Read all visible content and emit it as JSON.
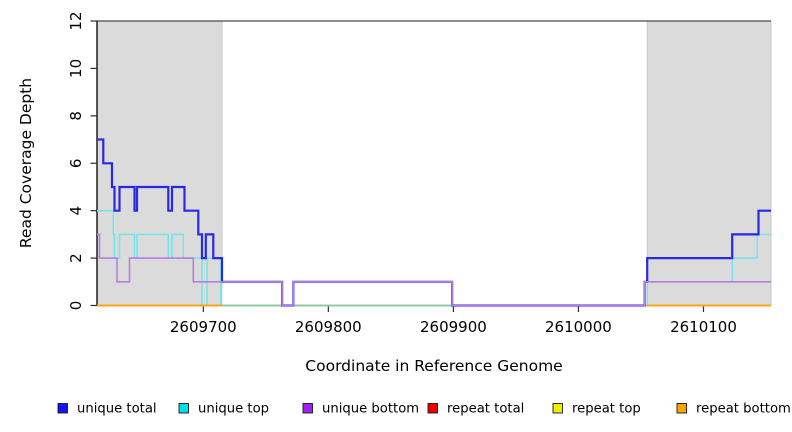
{
  "chart_data": {
    "type": "line",
    "subtype": "step-coverage",
    "title": "",
    "xlabel": "Coordinate in Reference Genome",
    "ylabel": "Read Coverage Depth",
    "xlim": [
      2609615,
      2610154
    ],
    "ylim": [
      0,
      12
    ],
    "x_ticks": [
      2609700,
      2609800,
      2609900,
      2610000,
      2610100
    ],
    "y_ticks": [
      0,
      2,
      4,
      6,
      8,
      10,
      12
    ],
    "grid": false,
    "legend_position": "bottom",
    "plot_bg": "#ffffff",
    "shaded_regions": [
      {
        "name": "shaded-region-left",
        "x0": 2609615,
        "x1": 2609715,
        "fill": "#DBDBDB",
        "border": "#BDBDBD"
      },
      {
        "name": "shaded-region-right",
        "x0": 2610055,
        "x1": 2610154,
        "fill": "#DBDBDB",
        "border": "#BDBDBD"
      }
    ],
    "series": [
      {
        "name": "repeat total",
        "color": "#E00000",
        "width": 1.4,
        "in_legend": true,
        "segments": [
          [
            [
              2609615,
              0
            ],
            [
              2609715,
              0
            ]
          ],
          [
            [
              2610055,
              0
            ],
            [
              2610154,
              0
            ]
          ]
        ]
      },
      {
        "name": "repeat top",
        "color": "#F0F000",
        "width": 1.4,
        "in_legend": true,
        "segments": [
          [
            [
              2609615,
              0
            ],
            [
              2609715,
              0
            ]
          ],
          [
            [
              2610055,
              0
            ],
            [
              2610154,
              0
            ]
          ]
        ]
      },
      {
        "name": "unique top",
        "color": "#72E6EA",
        "width": 1.5,
        "in_legend": true,
        "segments": [
          [
            [
              2609615,
              4
            ],
            [
              2609628,
              3
            ],
            [
              2609629,
              2
            ],
            [
              2609633,
              3
            ],
            [
              2609645,
              2
            ],
            [
              2609647,
              3
            ],
            [
              2609672,
              2
            ],
            [
              2609675,
              3
            ],
            [
              2609684,
              2
            ],
            [
              2609699,
              0
            ],
            [
              2609703,
              2
            ],
            [
              2609714,
              0
            ],
            [
              2610055,
              1
            ],
            [
              2610123,
              2
            ],
            [
              2610143,
              3
            ],
            [
              2610154,
              3
            ]
          ]
        ]
      },
      {
        "name": "baseline",
        "color": "#8FC98F",
        "width": 1.5,
        "in_legend": false,
        "segments": [
          [
            [
              2609715,
              0
            ],
            [
              2610154,
              0
            ]
          ]
        ]
      },
      {
        "name": "unique total",
        "color": "#2828E6",
        "width": 2.2,
        "in_legend": true,
        "segments": [
          [
            [
              2609615,
              7
            ],
            [
              2609620,
              6
            ],
            [
              2609627,
              5
            ],
            [
              2609629,
              4
            ],
            [
              2609633,
              5
            ],
            [
              2609645,
              4
            ],
            [
              2609647,
              5
            ],
            [
              2609672,
              4
            ],
            [
              2609675,
              5
            ],
            [
              2609685,
              4
            ],
            [
              2609696,
              3
            ],
            [
              2609699,
              2
            ],
            [
              2609702,
              3
            ],
            [
              2609708,
              2
            ],
            [
              2609715,
              1
            ],
            [
              2609763,
              0
            ],
            [
              2609772,
              1
            ],
            [
              2609899,
              0
            ],
            [
              2610053,
              1
            ],
            [
              2610055,
              2
            ],
            [
              2610123,
              3
            ],
            [
              2610144,
              4
            ],
            [
              2610154,
              4
            ]
          ]
        ]
      },
      {
        "name": "unique bottom",
        "color": "#B77FDD",
        "width": 1.6,
        "in_legend": true,
        "segments": [
          [
            [
              2609615,
              3
            ],
            [
              2609617,
              2
            ],
            [
              2609631,
              1
            ],
            [
              2609641,
              2
            ],
            [
              2609692,
              1
            ],
            [
              2609763,
              0
            ],
            [
              2609772,
              1
            ],
            [
              2609899,
              0
            ],
            [
              2610053,
              1
            ],
            [
              2610154,
              1
            ]
          ]
        ]
      },
      {
        "name": "repeat bottom",
        "color": "#FFA317",
        "width": 2.0,
        "in_legend": true,
        "segments": [
          [
            [
              2609615,
              0
            ],
            [
              2609715,
              0
            ]
          ],
          [
            [
              2610055,
              0
            ],
            [
              2610154,
              0
            ]
          ]
        ]
      }
    ],
    "legend": [
      {
        "label": "unique total",
        "swatch": "#1414EE"
      },
      {
        "label": "unique top",
        "swatch": "#00E1E6"
      },
      {
        "label": "unique bottom",
        "swatch": "#A020F0"
      },
      {
        "label": "repeat total",
        "swatch": "#E60000"
      },
      {
        "label": "repeat top",
        "swatch": "#EDED00"
      },
      {
        "label": "repeat bottom",
        "swatch": "#FFA300"
      }
    ]
  }
}
